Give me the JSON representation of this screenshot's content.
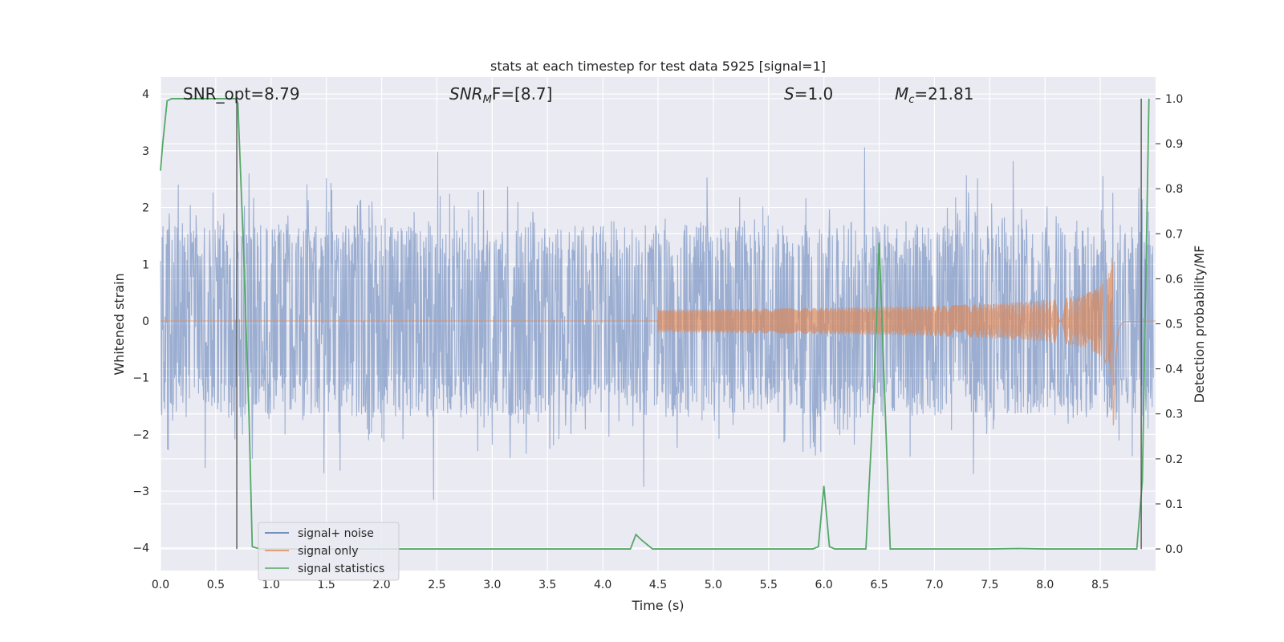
{
  "chart_data": {
    "type": "line",
    "title": "stats at each timestep for test data 5925 [signal=1]",
    "xlabel": "Time (s)",
    "ylabel": "Whitened strain",
    "y2label": "Detection probability/MF",
    "xlim": [
      0.0,
      9.0
    ],
    "ylim": [
      -4.4,
      4.3
    ],
    "y2lim": [
      -0.048,
      1.048
    ],
    "x_ticks": [
      0.0,
      0.5,
      1.0,
      1.5,
      2.0,
      2.5,
      3.0,
      3.5,
      4.0,
      4.5,
      5.0,
      5.5,
      6.0,
      6.5,
      7.0,
      7.5,
      8.0,
      8.5
    ],
    "x_tick_labels": [
      "0.0",
      "0.5",
      "1.0",
      "1.5",
      "2.0",
      "2.5",
      "3.0",
      "3.5",
      "4.0",
      "4.5",
      "5.0",
      "5.5",
      "6.0",
      "6.5",
      "7.0",
      "7.5",
      "8.0",
      "8.5"
    ],
    "y_ticks": [
      -4,
      -3,
      -2,
      -1,
      0,
      1,
      2,
      3,
      4
    ],
    "y_tick_labels": [
      "−4",
      "−3",
      "−2",
      "−1",
      "0",
      "1",
      "2",
      "3",
      "4"
    ],
    "y2_ticks": [
      0.0,
      0.1,
      0.2,
      0.3,
      0.4,
      0.5,
      0.6,
      0.7,
      0.8,
      0.9,
      1.0
    ],
    "y2_tick_labels": [
      "0.0",
      "0.1",
      "0.2",
      "0.3",
      "0.4",
      "0.5",
      "0.6",
      "0.7",
      "0.8",
      "0.9",
      "1.0"
    ],
    "grid": true,
    "legend_position": "lower-left",
    "annotations": {
      "snr_opt": "SNR_opt=8.79",
      "snr_mf_base": "SNR",
      "snr_mf_sub": "M",
      "snr_mf_rest": "F=[8.7]",
      "s_var": "S",
      "s_rest": "=1.0",
      "mc_var": "M",
      "mc_sub": "c",
      "mc_rest": "=21.81"
    },
    "vertical_markers": [
      0.69,
      8.87
    ],
    "series": [
      {
        "name": "signal+ noise",
        "color": "#4c72b0",
        "axis": "left",
        "style": "dense noise, amplitude ~1.5, peaks to about ±3.3",
        "envelope": {
          "x_start": 0.0,
          "x_end": 8.98,
          "typical_amplitude": 1.55,
          "max_peak": 3.4,
          "min_peak": -3.55
        }
      },
      {
        "name": "signal only",
        "color": "#dd8452",
        "axis": "left",
        "style": "chirp",
        "chirp": {
          "start": 4.5,
          "merger": 8.62,
          "end": 8.72,
          "peak_amplitude": 1.85
        }
      },
      {
        "name": "signal statistics",
        "color": "#55a868",
        "axis": "right",
        "x": [
          0.0,
          0.02,
          0.06,
          0.1,
          0.2,
          0.3,
          0.4,
          0.5,
          0.6,
          0.68,
          0.7,
          0.75,
          0.8,
          0.83,
          0.9,
          1.0,
          1.5,
          2.0,
          2.5,
          3.0,
          3.5,
          4.0,
          4.25,
          4.3,
          4.35,
          4.45,
          4.5,
          5.0,
          5.5,
          5.9,
          5.95,
          6.0,
          6.05,
          6.1,
          6.2,
          6.38,
          6.45,
          6.5,
          6.55,
          6.6,
          7.0,
          7.5,
          7.75,
          8.0,
          8.5,
          8.7,
          8.83,
          8.88,
          8.94
        ],
        "y": [
          0.84,
          0.9,
          0.995,
          1.0,
          1.0,
          1.0,
          1.0,
          1.0,
          1.0,
          1.0,
          0.99,
          0.67,
          0.3,
          0.005,
          0.0,
          0.0,
          0.0,
          0.0,
          0.0,
          0.0,
          0.0,
          0.0,
          0.0,
          0.032,
          0.02,
          0.0,
          0.0,
          0.0,
          0.0,
          0.0,
          0.005,
          0.14,
          0.005,
          0.0,
          0.0,
          0.0,
          0.34,
          0.68,
          0.34,
          0.0,
          0.0,
          0.0,
          0.001,
          0.0,
          0.0,
          0.0,
          0.0,
          0.15,
          1.0
        ]
      }
    ]
  }
}
